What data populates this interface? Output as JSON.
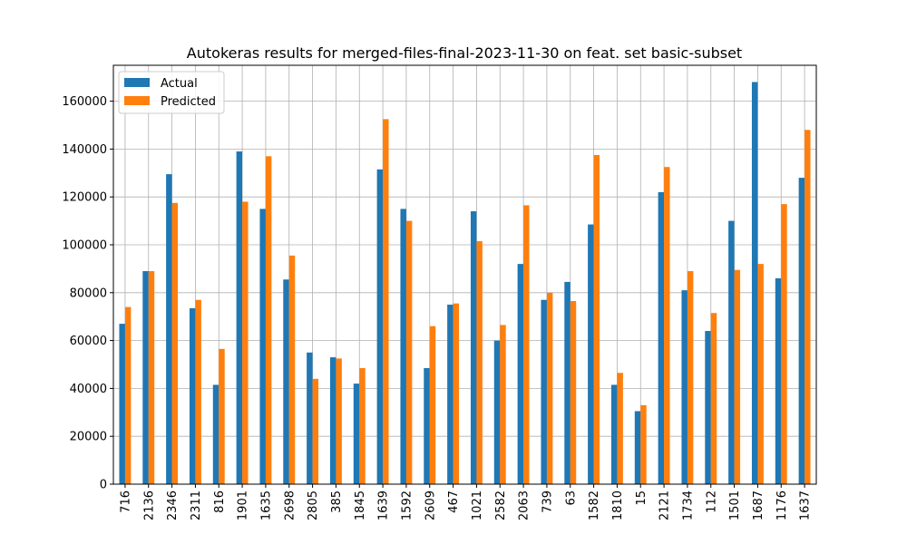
{
  "chart_data": {
    "type": "bar",
    "title": "Autokeras results for merged-files-final-2023-11-30 on feat. set basic-subset",
    "xlabel": "",
    "ylabel": "",
    "ylim": [
      0,
      175000
    ],
    "y_ticks": [
      0,
      20000,
      40000,
      60000,
      80000,
      100000,
      120000,
      140000,
      160000
    ],
    "grid": true,
    "legend_position": "top-left",
    "categories": [
      "716",
      "2136",
      "2346",
      "2311",
      "816",
      "1901",
      "1635",
      "2698",
      "2805",
      "385",
      "1845",
      "1639",
      "1592",
      "2609",
      "467",
      "1021",
      "2582",
      "2063",
      "739",
      "63",
      "1582",
      "1810",
      "15",
      "2121",
      "1734",
      "112",
      "1501",
      "1687",
      "1176",
      "1637"
    ],
    "series": [
      {
        "name": "Actual",
        "color": "#1f77b4",
        "values": [
          67000,
          89000,
          129500,
          73500,
          41500,
          139000,
          115000,
          85500,
          55000,
          53000,
          42000,
          131500,
          115000,
          48500,
          75000,
          114000,
          60000,
          92000,
          77000,
          84500,
          108500,
          41500,
          30500,
          122000,
          81000,
          64000,
          110000,
          168000,
          86000,
          128000
        ]
      },
      {
        "name": "Predicted",
        "color": "#ff7f0e",
        "values": [
          74000,
          89000,
          117500,
          77000,
          56500,
          118000,
          137000,
          95500,
          44000,
          52500,
          48500,
          152500,
          110000,
          66000,
          75500,
          101500,
          66500,
          116500,
          80000,
          76500,
          137500,
          46500,
          33000,
          132500,
          89000,
          71500,
          89500,
          92000,
          117000,
          148000
        ]
      }
    ]
  }
}
